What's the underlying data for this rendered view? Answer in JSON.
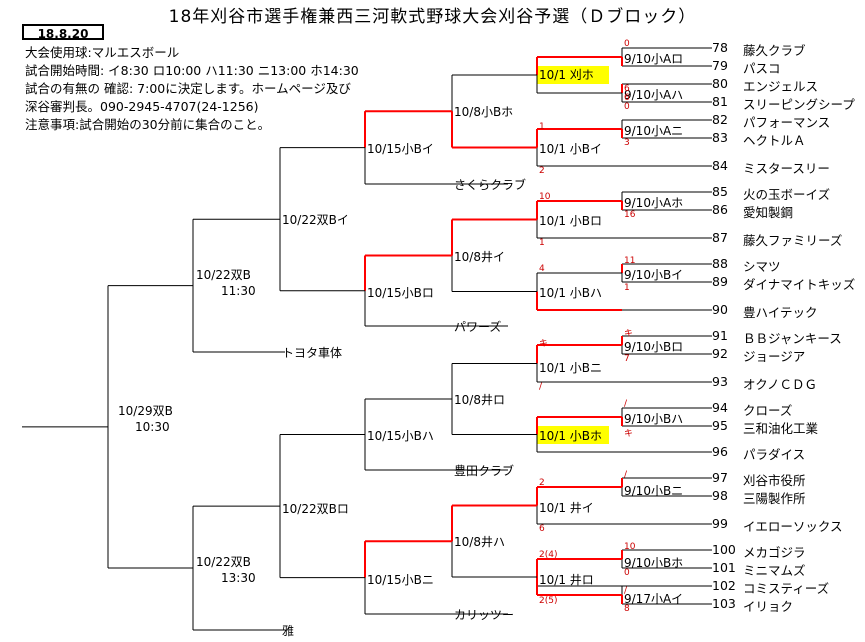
{
  "title": "18年刈谷市選手権兼西三河軟式野球大会刈谷予選（Ｄブロック）",
  "date_stamp": "18.8.20",
  "info_lines": [
    "大会使用球:マルエスボール",
    "試合開始時間: イ8:30  ロ10:00  ハ11:30  ニ13:00  ホ14:30",
    "試合の有無の 確認: 7:00に決定します。ホームページ及び",
    "深谷審判長。090-2945-4707(24-1256)",
    "注意事項:試合開始の30分前に集合のこと。"
  ],
  "colors": {
    "winner_line": "#ff0000",
    "base_line": "#000000",
    "highlight": "#ffff00",
    "score": "#cc0000"
  },
  "teams": [
    {
      "num": "78",
      "name": "藤久クラブ"
    },
    {
      "num": "79",
      "name": "パスコ"
    },
    {
      "num": "80",
      "name": "エンジェルス"
    },
    {
      "num": "81",
      "name": "スリーピングシープ"
    },
    {
      "num": "82",
      "name": "パフォーマンス"
    },
    {
      "num": "83",
      "name": "ヘクトルＡ"
    },
    {
      "num": "84",
      "name": "ミスタースリー"
    },
    {
      "num": "85",
      "name": "火の玉ボーイズ"
    },
    {
      "num": "86",
      "name": "愛知製鋼"
    },
    {
      "num": "87",
      "name": "藤久ファミリーズ"
    },
    {
      "num": "88",
      "name": "シマツ"
    },
    {
      "num": "89",
      "name": "ダイナマイトキッズ"
    },
    {
      "num": "90",
      "name": "豊ハイテック"
    },
    {
      "num": "91",
      "name": "ＢＢジャンキース"
    },
    {
      "num": "92",
      "name": "ジョージア"
    },
    {
      "num": "93",
      "name": "オクノＣＤＧ"
    },
    {
      "num": "94",
      "name": "クローズ"
    },
    {
      "num": "95",
      "name": "三和油化工業"
    },
    {
      "num": "96",
      "name": "パラダイス"
    },
    {
      "num": "97",
      "name": "刈谷市役所"
    },
    {
      "num": "98",
      "name": "三陽製作所"
    },
    {
      "num": "99",
      "name": "イエローソックス"
    },
    {
      "num": "100",
      "name": "メカゴジラ"
    },
    {
      "num": "101",
      "name": "ミニマムズ"
    },
    {
      "num": "102",
      "name": "コミスティーズ"
    },
    {
      "num": "103",
      "name": "イリョク"
    }
  ],
  "r1_labels": [
    "9/10小Aロ",
    "9/10小Aハ",
    "9/10小Aニ",
    "9/10小Aホ",
    "9/10小Bイ",
    "9/10小Bロ",
    "9/10小Bハ",
    "9/10小Bニ",
    "9/10小Bホ",
    "9/17小Aイ"
  ],
  "r2_labels": [
    "10/1 刈ホ",
    "10/1 小Bイ",
    "10/1 小Bロ",
    "10/1 小Bハ",
    "10/1 小Bニ",
    "10/1 小Bホ",
    "10/1 井イ",
    "10/1 井ロ"
  ],
  "r3_labels": [
    "10/8小Bホ",
    "10/8井イ",
    "10/8井ロ",
    "10/8井ハ"
  ],
  "r4_labels": [
    "10/15小Bイ",
    "10/15小Bロ",
    "10/15小Bハ",
    "10/15小Bニ"
  ],
  "r5_labels": [
    "10/22双Bイ",
    "10/22双Bロ"
  ],
  "r6_labels": [
    "10/22双B",
    "11:30",
    "10/22双B",
    "13:30"
  ],
  "final_labels": [
    "10/29双B",
    "10:30"
  ],
  "seed_teams": [
    "さくらクラブ",
    "パワーズ",
    "豊田クラブ",
    "カリッツー",
    "トヨタ車体",
    "雅"
  ],
  "scores": [
    "0",
    "6",
    "6",
    "0",
    "1",
    "3",
    "2",
    "10",
    "16",
    "4",
    "11",
    "1",
    "1",
    "キ",
    "キ",
    "7",
    "/",
    "/",
    "キ",
    "2",
    "/",
    "6",
    "2(4)",
    "2(5)",
    "10",
    "0",
    "/",
    "8"
  ]
}
